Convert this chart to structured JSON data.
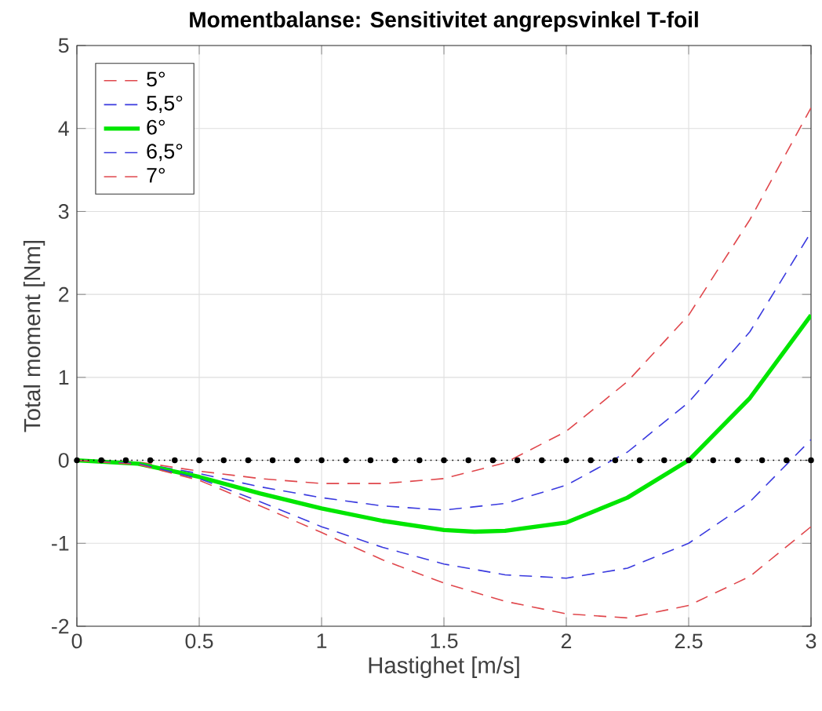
{
  "chart_data": {
    "type": "line",
    "title": "Momentbalanse: Sensitivitet angrepsvinkel T-foil",
    "xlabel": "Hastighet [m/s]",
    "ylabel": "Total moment [Nm]",
    "xlim": [
      0,
      3
    ],
    "ylim": [
      -2,
      5
    ],
    "xticks": [
      0,
      0.5,
      1,
      1.5,
      2,
      2.5,
      3
    ],
    "yticks": [
      -2,
      -1,
      0,
      1,
      2,
      3,
      4,
      5
    ],
    "grid": true,
    "legend": "top left",
    "series": [
      {
        "name": "5°",
        "color": "#e0474c",
        "line_style": "dashed",
        "x": [
          0,
          0.25,
          0.5,
          0.75,
          1,
          1.25,
          1.5,
          1.75,
          2,
          2.25,
          2.5,
          2.75,
          3
        ],
        "values": [
          0,
          -0.02,
          -0.13,
          -0.22,
          -0.28,
          -0.28,
          -0.22,
          -0.03,
          0.35,
          0.95,
          1.75,
          2.9,
          4.25
        ]
      },
      {
        "name": "5,5°",
        "color": "#3a3adf",
        "line_style": "dashed",
        "x": [
          0,
          0.25,
          0.5,
          0.75,
          1,
          1.25,
          1.5,
          1.75,
          2,
          2.25,
          2.5,
          2.75,
          3
        ],
        "values": [
          0,
          -0.03,
          -0.16,
          -0.32,
          -0.45,
          -0.55,
          -0.6,
          -0.52,
          -0.3,
          0.1,
          0.7,
          1.55,
          2.75
        ]
      },
      {
        "name": "6°",
        "color": "#00e600",
        "line_style": "solid",
        "x": [
          0,
          0.25,
          0.5,
          0.75,
          1,
          1.25,
          1.5,
          1.625,
          1.75,
          2,
          2.25,
          2.5,
          2.75,
          3
        ],
        "values": [
          0,
          -0.04,
          -0.2,
          -0.4,
          -0.58,
          -0.73,
          -0.84,
          -0.86,
          -0.85,
          -0.75,
          -0.45,
          0,
          0.75,
          1.75
        ]
      },
      {
        "name": "6,5°",
        "color": "#3a3adf",
        "line_style": "dashed",
        "x": [
          0,
          0.25,
          0.5,
          0.75,
          1,
          1.25,
          1.5,
          1.75,
          2,
          2.25,
          2.5,
          2.75,
          3
        ],
        "values": [
          0,
          -0.04,
          -0.22,
          -0.5,
          -0.8,
          -1.05,
          -1.25,
          -1.38,
          -1.42,
          -1.3,
          -1.0,
          -0.5,
          0.25
        ]
      },
      {
        "name": "7°",
        "color": "#e0474c",
        "line_style": "dashed",
        "x": [
          0,
          0.25,
          0.5,
          0.75,
          1,
          1.25,
          1.5,
          1.75,
          2,
          2.25,
          2.5,
          2.75,
          3
        ],
        "values": [
          0,
          -0.05,
          -0.24,
          -0.55,
          -0.87,
          -1.2,
          -1.48,
          -1.7,
          -1.85,
          -1.9,
          -1.75,
          -1.4,
          -0.8
        ]
      },
      {
        "color": "#000000",
        "line_style": "dotted",
        "marker": "circle",
        "x": [
          0,
          0.1,
          0.2,
          0.3,
          0.4,
          0.5,
          0.6,
          0.7,
          0.8,
          0.9,
          1,
          1.1,
          1.2,
          1.3,
          1.4,
          1.5,
          1.6,
          1.7,
          1.8,
          1.9,
          2,
          2.1,
          2.2,
          2.3,
          2.4,
          2.5,
          2.6,
          2.7,
          2.8,
          2.9,
          3
        ],
        "values": [
          0,
          0,
          0,
          0,
          0,
          0,
          0,
          0,
          0,
          0,
          0,
          0,
          0,
          0,
          0,
          0,
          0,
          0,
          0,
          0,
          0,
          0,
          0,
          0,
          0,
          0,
          0,
          0,
          0,
          0,
          0
        ]
      }
    ]
  }
}
